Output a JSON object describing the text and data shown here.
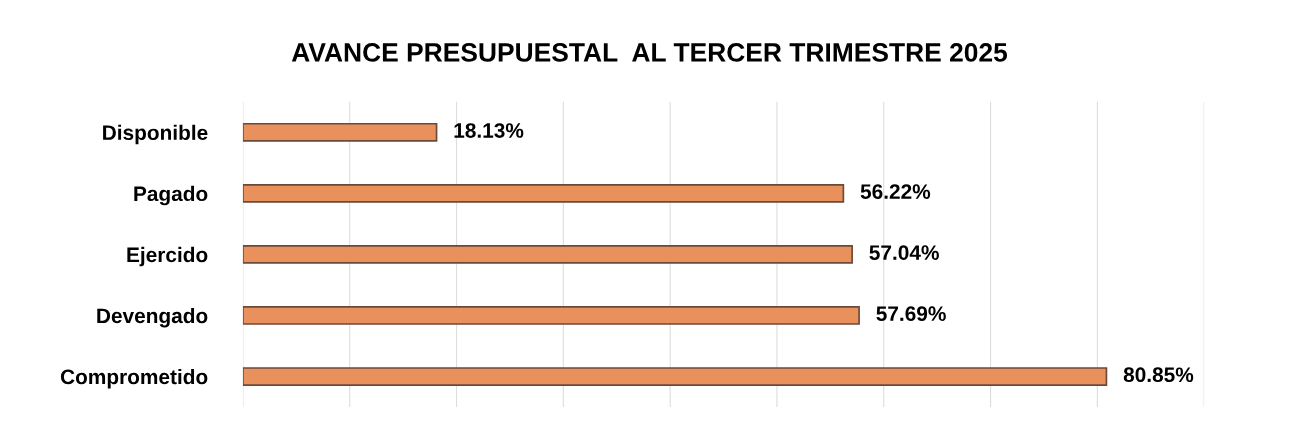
{
  "chart_data": {
    "type": "bar",
    "orientation": "horizontal",
    "title": "AVANCE PRESUPUESTAL  AL TERCER TRIMESTRE 2025",
    "categories": [
      "Disponible",
      "Pagado",
      "Ejercido",
      "Devengado",
      "Comprometido"
    ],
    "values": [
      18.13,
      56.22,
      57.04,
      57.69,
      80.85
    ],
    "value_labels": [
      "18.13%",
      "56.22%",
      "57.04%",
      "57.69%",
      "80.85%"
    ],
    "color": "#e8915c",
    "xlim": [
      0,
      90
    ],
    "xticks": [
      {
        "value": 0,
        "label": null
      },
      {
        "value": 10,
        "label": null
      },
      {
        "value": 20,
        "label": null
      },
      {
        "value": 30,
        "label": null
      },
      {
        "value": 40,
        "label": null
      },
      {
        "value": 50,
        "label": null
      },
      {
        "value": 60,
        "label": null
      },
      {
        "value": 70,
        "label": null
      },
      {
        "value": 80,
        "label": null
      },
      {
        "value": 90,
        "label": null
      }
    ],
    "grid": "x",
    "tick_labels": "y"
  }
}
